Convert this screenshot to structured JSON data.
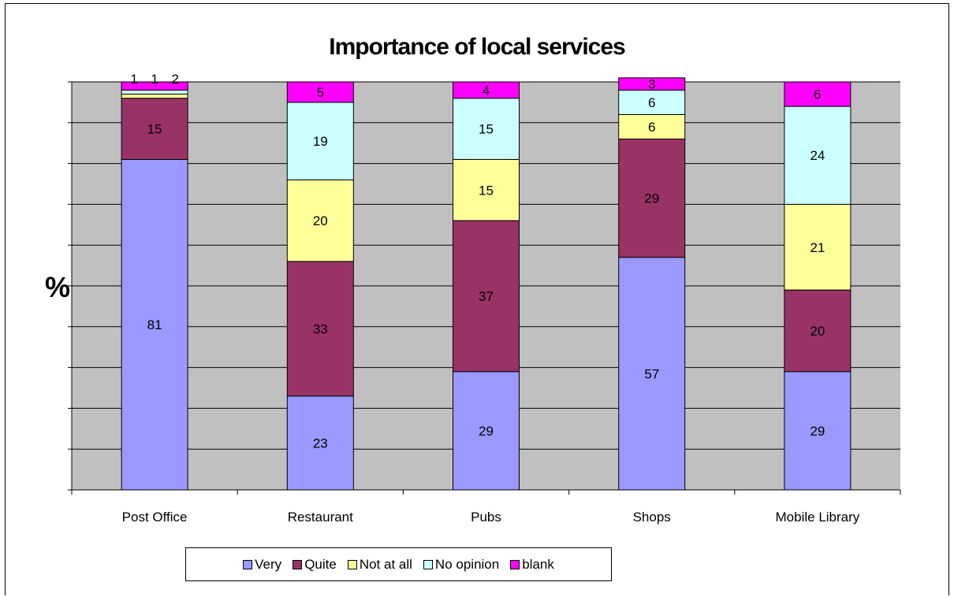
{
  "chart_data": {
    "type": "bar",
    "stacked": true,
    "title": "Importance of local services",
    "ylabel": "%",
    "ylim": [
      0,
      100
    ],
    "grid": true,
    "legend_position": "bottom",
    "categories": [
      "Post Office",
      "Restaurant",
      "Pubs",
      "Shops",
      "Mobile Library"
    ],
    "series": [
      {
        "name": "Very",
        "color": "#9999FF",
        "values": [
          81,
          23,
          29,
          57,
          29
        ]
      },
      {
        "name": "Quite",
        "color": "#993366",
        "values": [
          15,
          33,
          37,
          29,
          20
        ]
      },
      {
        "name": "Not at all",
        "color": "#FFFF99",
        "values": [
          1,
          20,
          15,
          6,
          21
        ]
      },
      {
        "name": "No opinion",
        "color": "#CCFFFF",
        "values": [
          1,
          19,
          15,
          6,
          24
        ]
      },
      {
        "name": "blank",
        "color": "#FF00FF",
        "values": [
          2,
          5,
          4,
          3,
          6
        ]
      }
    ],
    "plot_background": "#C0C0C0"
  }
}
